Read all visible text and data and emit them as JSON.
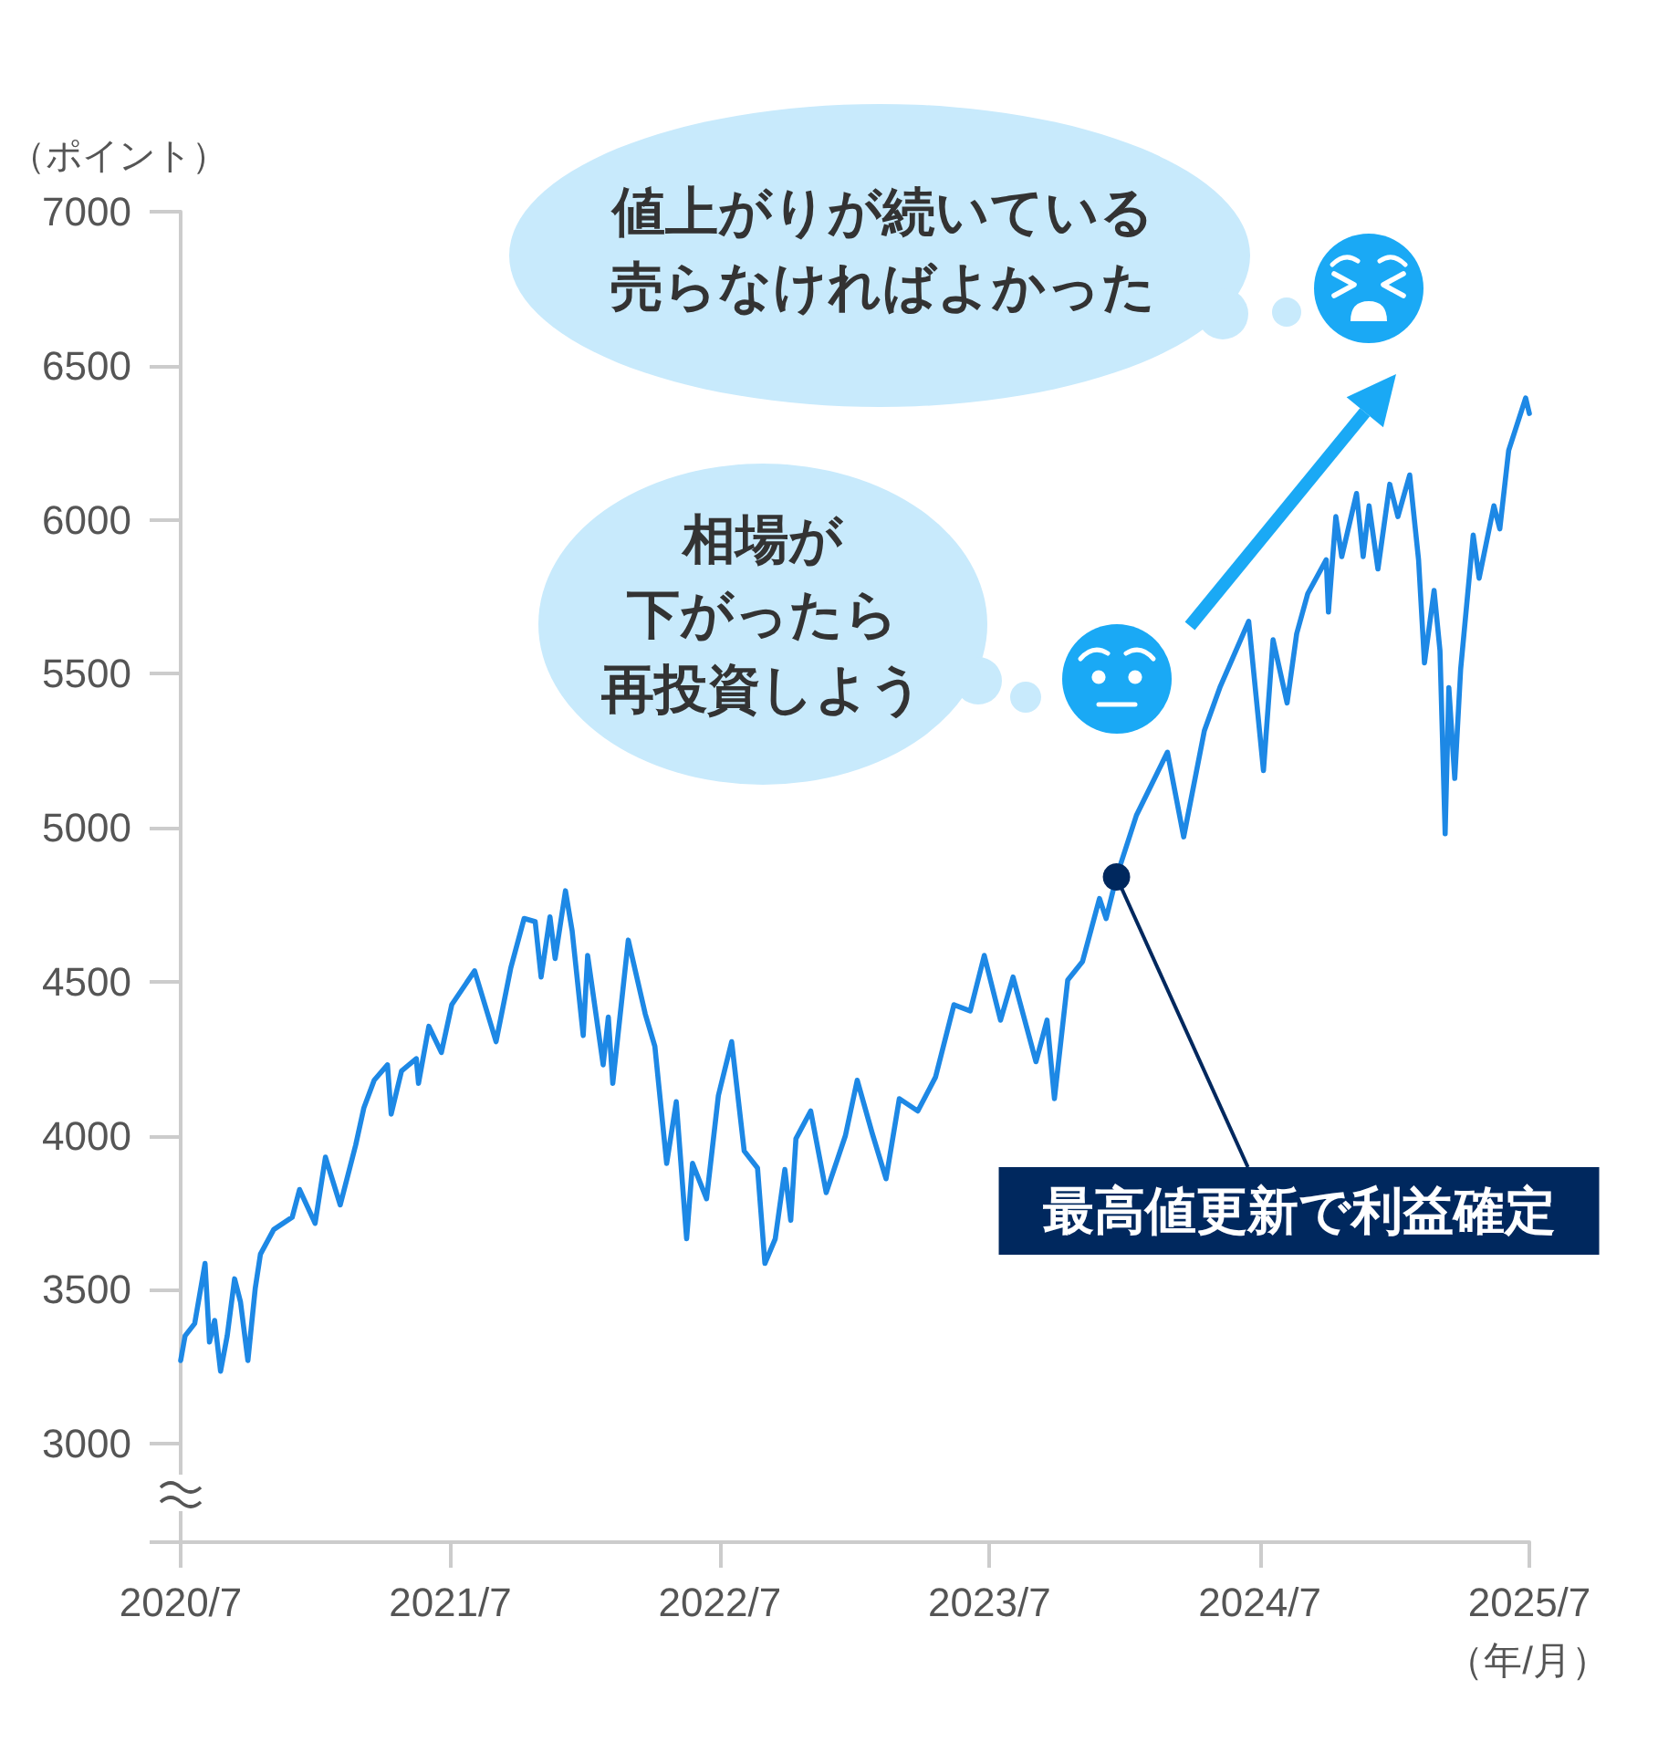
{
  "chart_data": {
    "type": "line",
    "ylabel": "（ポイント）",
    "xlabel": "（年/月）",
    "x": [
      "2020-07-31",
      "2020-08-06",
      "2020-08-19",
      "2020-09-02",
      "2020-09-08",
      "2020-09-15",
      "2020-09-23",
      "2020-10-02",
      "2020-10-12",
      "2020-10-20",
      "2020-10-30",
      "2020-11-09",
      "2020-11-16",
      "2020-12-04",
      "2020-12-29",
      "2021-01-08",
      "2021-01-29",
      "2021-02-12",
      "2021-03-04",
      "2021-03-25",
      "2021-04-05",
      "2021-04-19",
      "2021-05-07",
      "2021-05-12",
      "2021-05-26",
      "2021-06-15",
      "2021-06-18",
      "2021-07-02",
      "2021-07-19",
      "2021-08-02",
      "2021-08-16",
      "2021-09-02",
      "2021-10-01",
      "2021-10-21",
      "2021-11-08",
      "2021-11-23",
      "2021-12-01",
      "2021-12-13",
      "2021-12-20",
      "2022-01-03",
      "2022-01-12",
      "2022-01-27",
      "2022-02-02",
      "2022-02-23",
      "2022-03-02",
      "2022-03-08",
      "2022-03-29",
      "2022-04-21",
      "2022-05-04",
      "2022-05-20",
      "2022-06-02",
      "2022-06-16",
      "2022-06-24",
      "2022-07-13",
      "2022-07-29",
      "2022-08-16",
      "2022-09-02",
      "2022-09-20",
      "2022-09-30",
      "2022-10-14",
      "2022-10-27",
      "2022-11-04",
      "2022-11-11",
      "2022-12-01",
      "2022-12-22",
      "2023-01-17",
      "2023-02-02",
      "2023-02-22",
      "2023-03-13",
      "2023-03-31",
      "2023-04-25",
      "2023-05-19",
      "2023-06-13",
      "2023-07-05",
      "2023-07-24",
      "2023-08-15",
      "2023-09-01",
      "2023-10-02",
      "2023-10-17",
      "2023-10-27",
      "2023-11-14",
      "2023-12-04",
      "2023-12-27",
      "2024-01-05",
      "2024-01-19",
      "2024-02-15",
      "2024-03-28",
      "2024-04-19",
      "2024-05-17",
      "2024-06-07",
      "2024-07-16",
      "2024-08-05",
      "2024-08-18",
      "2024-09-06",
      "2024-09-19",
      "2024-10-04",
      "2024-10-29",
      "2024-11-01",
      "2024-11-11",
      "2024-11-19",
      "2024-12-09",
      "2024-12-18",
      "2024-12-26",
      "2025-01-07",
      "2025-01-23",
      "2025-02-03",
      "2025-02-19",
      "2025-03-03",
      "2025-03-11",
      "2025-03-24",
      "2025-04-01",
      "2025-04-08",
      "2025-04-13",
      "2025-04-21",
      "2025-04-29",
      "2025-05-16",
      "2025-05-24",
      "2025-06-13",
      "2025-06-21",
      "2025-07-03",
      "2025-07-26",
      "2025-07-31"
    ],
    "series": [
      {
        "color": "#1d88e5",
        "values": [
          3270,
          3350,
          3390,
          3585,
          3330,
          3400,
          3235,
          3350,
          3535,
          3460,
          3270,
          3505,
          3615,
          3695,
          3735,
          3825,
          3715,
          3930,
          3775,
          3970,
          4090,
          4180,
          4230,
          4070,
          4210,
          4250,
          4170,
          4355,
          4270,
          4425,
          4475,
          4535,
          4305,
          4545,
          4705,
          4695,
          4515,
          4710,
          4575,
          4795,
          4665,
          4325,
          4585,
          4230,
          4385,
          4170,
          4635,
          4395,
          4290,
          3910,
          4110,
          3665,
          3910,
          3795,
          4130,
          4305,
          3950,
          3895,
          3585,
          3665,
          3890,
          3725,
          3990,
          4080,
          3815,
          4000,
          4180,
          4010,
          3860,
          4120,
          4080,
          4190,
          4425,
          4405,
          4585,
          4375,
          4515,
          4240,
          4375,
          4120,
          4505,
          4565,
          4770,
          4705,
          4840,
          5040,
          5245,
          4970,
          5315,
          5455,
          5670,
          5185,
          5610,
          5405,
          5630,
          5760,
          5870,
          5700,
          6010,
          5880,
          6085,
          5880,
          6045,
          5840,
          6115,
          6010,
          6145,
          5870,
          5535,
          5770,
          5575,
          4980,
          5455,
          5160,
          5515,
          5950,
          5810,
          6045,
          5970,
          6225,
          6395,
          6345
        ]
      }
    ],
    "xlim": [
      "2020-07-31",
      "2025-07-31"
    ],
    "xticks": [
      {
        "value": "2020-07-31",
        "label": "2020/7"
      },
      {
        "value": "2021-07-31",
        "label": "2021/7"
      },
      {
        "value": "2022-07-31",
        "label": "2022/7"
      },
      {
        "value": "2023-07-31",
        "label": "2023/7"
      },
      {
        "value": "2024-07-31",
        "label": "2024/7"
      },
      {
        "value": "2025-07-31",
        "label": "2025/7"
      }
    ],
    "ylim": [
      2680,
      7000
    ],
    "yticks": [
      {
        "value": 2680,
        "label": null
      },
      3000,
      3500,
      4000,
      4500,
      5000,
      5500,
      6000,
      6500,
      7000
    ],
    "grid": false,
    "marker": "none",
    "line_style": "solid",
    "annotations": [
      "値上がりが続いている売らなければよかった",
      "相場が下がったら再投資しよう",
      {
        "text": "最高値更新で利益確定",
        "x": "2024-01-19",
        "y": 4840
      }
    ]
  }
}
